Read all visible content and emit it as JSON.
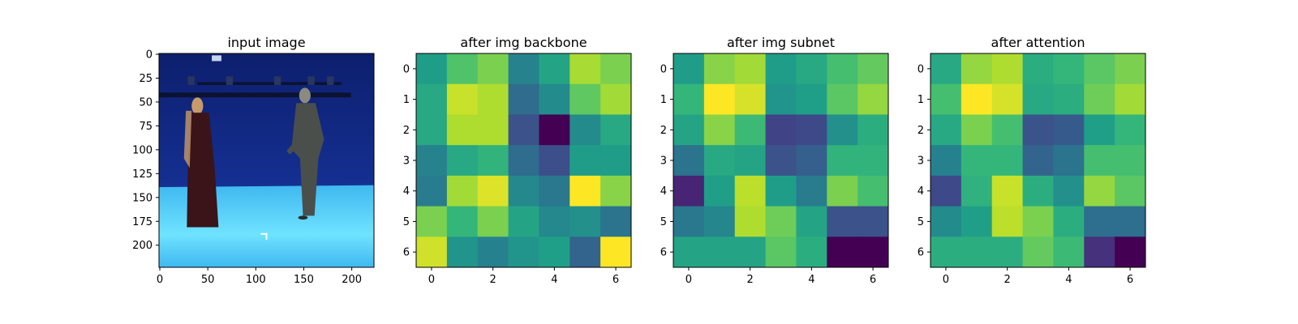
{
  "chart_data": [
    {
      "type": "image",
      "title": "input image",
      "image_description_colors": {
        "backdrop": "#1a3aa8",
        "floor": "#3fb8f0",
        "floor_highlight": "#6fe3ff",
        "rig": "#0b1230",
        "figure_left_dress": "#3a1418",
        "figure_left_hair": "#c89a6a",
        "figure_right_suit": "#4a4f4c",
        "figure_right_head": "#8a8a80"
      },
      "xlim": [
        0,
        224
      ],
      "ylim": [
        224,
        0
      ],
      "xticks": [
        0,
        50,
        100,
        150,
        200
      ],
      "yticks": [
        0,
        25,
        50,
        75,
        100,
        125,
        150,
        175,
        200
      ]
    },
    {
      "type": "heatmap",
      "title": "after img backbone",
      "colormap": "viridis",
      "xticks": [
        0,
        2,
        4,
        6
      ],
      "yticks": [
        0,
        1,
        2,
        3,
        4,
        5,
        6
      ],
      "values": [
        [
          0.55,
          0.72,
          0.8,
          0.45,
          0.58,
          0.87,
          0.8
        ],
        [
          0.6,
          0.92,
          0.88,
          0.35,
          0.48,
          0.75,
          0.86
        ],
        [
          0.6,
          0.88,
          0.88,
          0.25,
          0.0,
          0.48,
          0.6
        ],
        [
          0.45,
          0.6,
          0.65,
          0.35,
          0.24,
          0.55,
          0.55
        ],
        [
          0.42,
          0.86,
          0.95,
          0.47,
          0.4,
          1.0,
          0.82
        ],
        [
          0.8,
          0.66,
          0.8,
          0.58,
          0.47,
          0.5,
          0.38
        ],
        [
          0.93,
          0.52,
          0.44,
          0.52,
          0.56,
          0.32,
          1.0
        ]
      ]
    },
    {
      "type": "heatmap",
      "title": "after img subnet",
      "colormap": "viridis",
      "xticks": [
        0,
        2,
        4,
        6
      ],
      "yticks": [
        0,
        1,
        2,
        3,
        4,
        5,
        6
      ],
      "values": [
        [
          0.55,
          0.82,
          0.86,
          0.55,
          0.6,
          0.7,
          0.76
        ],
        [
          0.66,
          1.0,
          0.94,
          0.52,
          0.56,
          0.74,
          0.84
        ],
        [
          0.58,
          0.82,
          0.68,
          0.2,
          0.22,
          0.5,
          0.62
        ],
        [
          0.38,
          0.6,
          0.58,
          0.25,
          0.3,
          0.65,
          0.65
        ],
        [
          0.1,
          0.56,
          0.9,
          0.55,
          0.42,
          0.8,
          0.7
        ],
        [
          0.4,
          0.46,
          0.88,
          0.78,
          0.58,
          0.25,
          0.25
        ],
        [
          0.58,
          0.58,
          0.58,
          0.74,
          0.62,
          0.0,
          0.0
        ]
      ]
    },
    {
      "type": "heatmap",
      "title": "after attention",
      "colormap": "viridis",
      "xticks": [
        0,
        2,
        4,
        6
      ],
      "yticks": [
        0,
        1,
        2,
        3,
        4,
        5,
        6
      ],
      "values": [
        [
          0.6,
          0.84,
          0.88,
          0.62,
          0.66,
          0.74,
          0.8
        ],
        [
          0.7,
          1.0,
          0.94,
          0.6,
          0.62,
          0.78,
          0.86
        ],
        [
          0.6,
          0.8,
          0.7,
          0.26,
          0.28,
          0.56,
          0.66
        ],
        [
          0.44,
          0.66,
          0.66,
          0.32,
          0.38,
          0.7,
          0.7
        ],
        [
          0.22,
          0.64,
          0.92,
          0.62,
          0.5,
          0.84,
          0.74
        ],
        [
          0.48,
          0.56,
          0.9,
          0.8,
          0.62,
          0.36,
          0.36
        ],
        [
          0.62,
          0.62,
          0.62,
          0.76,
          0.68,
          0.14,
          0.0
        ]
      ]
    }
  ]
}
